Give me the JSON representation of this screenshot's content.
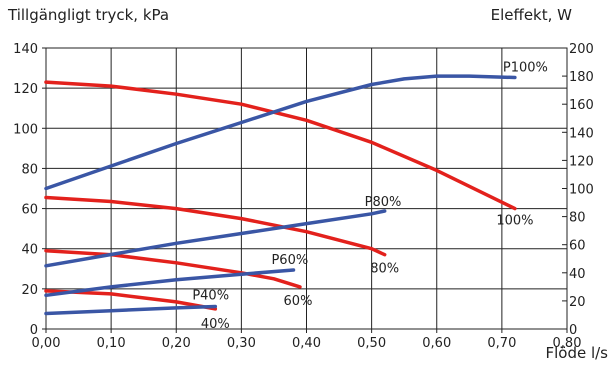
{
  "chart_data": {
    "type": "line",
    "ylabel_left": "Tillgängligt tryck, kPa",
    "ylabel_right": "Eleffekt, W",
    "xlabel": "Flöde l/s",
    "xlim": [
      0,
      0.8
    ],
    "ylim_left": [
      0,
      140
    ],
    "ylim_right": [
      0,
      200
    ],
    "x_ticks": [
      "0,00",
      "0,10",
      "0,20",
      "0,30",
      "0,40",
      "0,50",
      "0,60",
      "0,70",
      "0,80"
    ],
    "y_ticks_left": [
      "0",
      "20",
      "40",
      "60",
      "80",
      "100",
      "120",
      "140"
    ],
    "y_ticks_right": [
      "0",
      "20",
      "40",
      "60",
      "80",
      "100",
      "120",
      "140",
      "160",
      "180",
      "200"
    ],
    "grid": true,
    "pressure_color": "#e3211c",
    "power_color": "#3a56a5",
    "pressure_series": [
      {
        "name": "100%",
        "x": [
          0.0,
          0.1,
          0.2,
          0.3,
          0.4,
          0.5,
          0.6,
          0.72
        ],
        "y": [
          123,
          121,
          117,
          112,
          104,
          93,
          79,
          60
        ]
      },
      {
        "name": "80%",
        "x": [
          0.0,
          0.1,
          0.2,
          0.3,
          0.4,
          0.5,
          0.52
        ],
        "y": [
          65.5,
          63.5,
          60,
          55,
          48.5,
          40,
          37
        ]
      },
      {
        "name": "60%",
        "x": [
          0.0,
          0.1,
          0.2,
          0.3,
          0.35,
          0.39
        ],
        "y": [
          39,
          37,
          33,
          28,
          25,
          21
        ]
      },
      {
        "name": "40%",
        "x": [
          0.0,
          0.1,
          0.2,
          0.26
        ],
        "y": [
          19,
          17.5,
          13.5,
          10
        ]
      }
    ],
    "power_series": [
      {
        "name": "P100%",
        "x": [
          0.0,
          0.1,
          0.2,
          0.3,
          0.4,
          0.5,
          0.55,
          0.6,
          0.65,
          0.72
        ],
        "y": [
          100,
          116,
          132,
          147,
          162,
          174,
          178,
          180,
          180,
          179
        ]
      },
      {
        "name": "P80%",
        "x": [
          0.0,
          0.1,
          0.2,
          0.3,
          0.4,
          0.5,
          0.52
        ],
        "y": [
          45,
          53,
          61,
          68,
          75,
          82,
          84
        ]
      },
      {
        "name": "P60%",
        "x": [
          0.0,
          0.1,
          0.2,
          0.3,
          0.38
        ],
        "y": [
          24,
          30,
          35,
          39,
          42
        ]
      },
      {
        "name": "P40%",
        "x": [
          0.0,
          0.1,
          0.2,
          0.26
        ],
        "y": [
          11,
          13,
          15,
          16
        ]
      }
    ]
  }
}
